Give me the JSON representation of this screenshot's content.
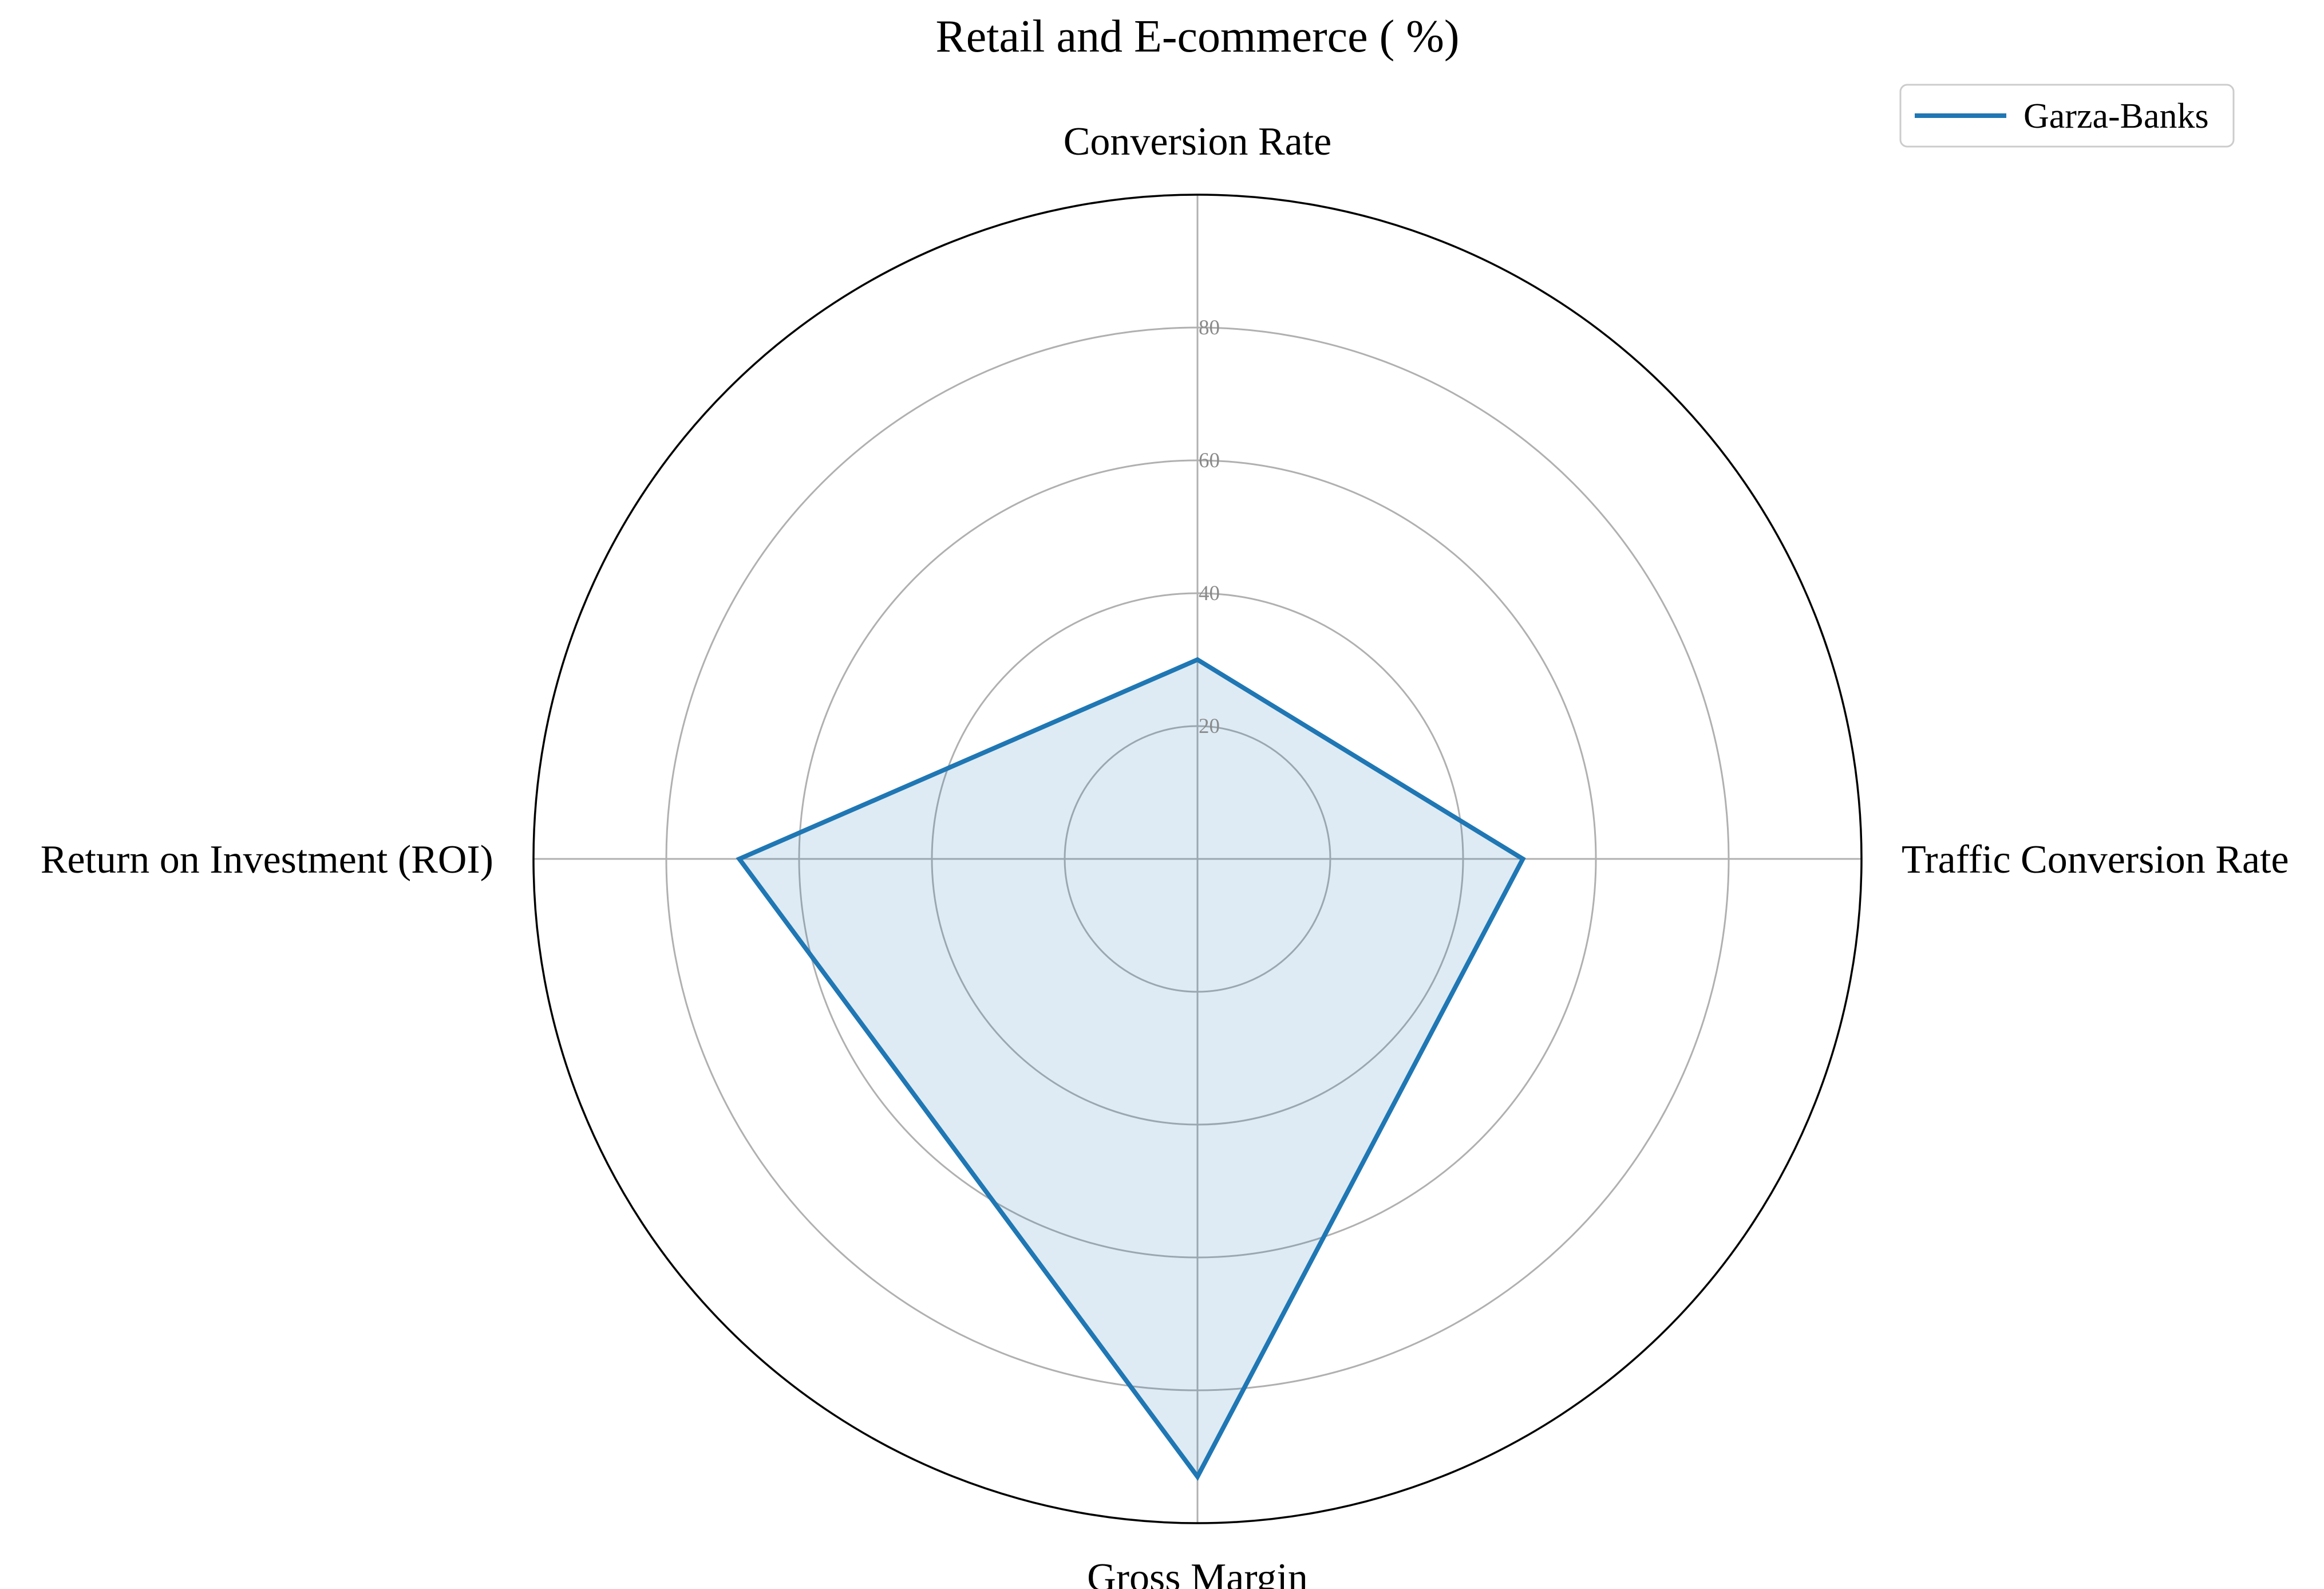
{
  "chart_data": {
    "type": "radar",
    "title": "Retail and E-commerce ( %)",
    "axes": [
      "Conversion Rate",
      "Traffic Conversion Rate",
      "Gross Margin",
      "Return on Investment (ROI)"
    ],
    "rlim": [
      0,
      100
    ],
    "rticks": [
      20,
      40,
      60,
      80
    ],
    "rtick_labels": [
      "20",
      "40",
      "60",
      "80"
    ],
    "grid": true,
    "legend_position": "top-right",
    "series": [
      {
        "name": "Garza-Banks",
        "values": [
          30,
          49,
          93,
          69
        ],
        "color": "#1f77b4",
        "fill_color": "#1f77b4",
        "fill_opacity": 0.15
      }
    ]
  }
}
